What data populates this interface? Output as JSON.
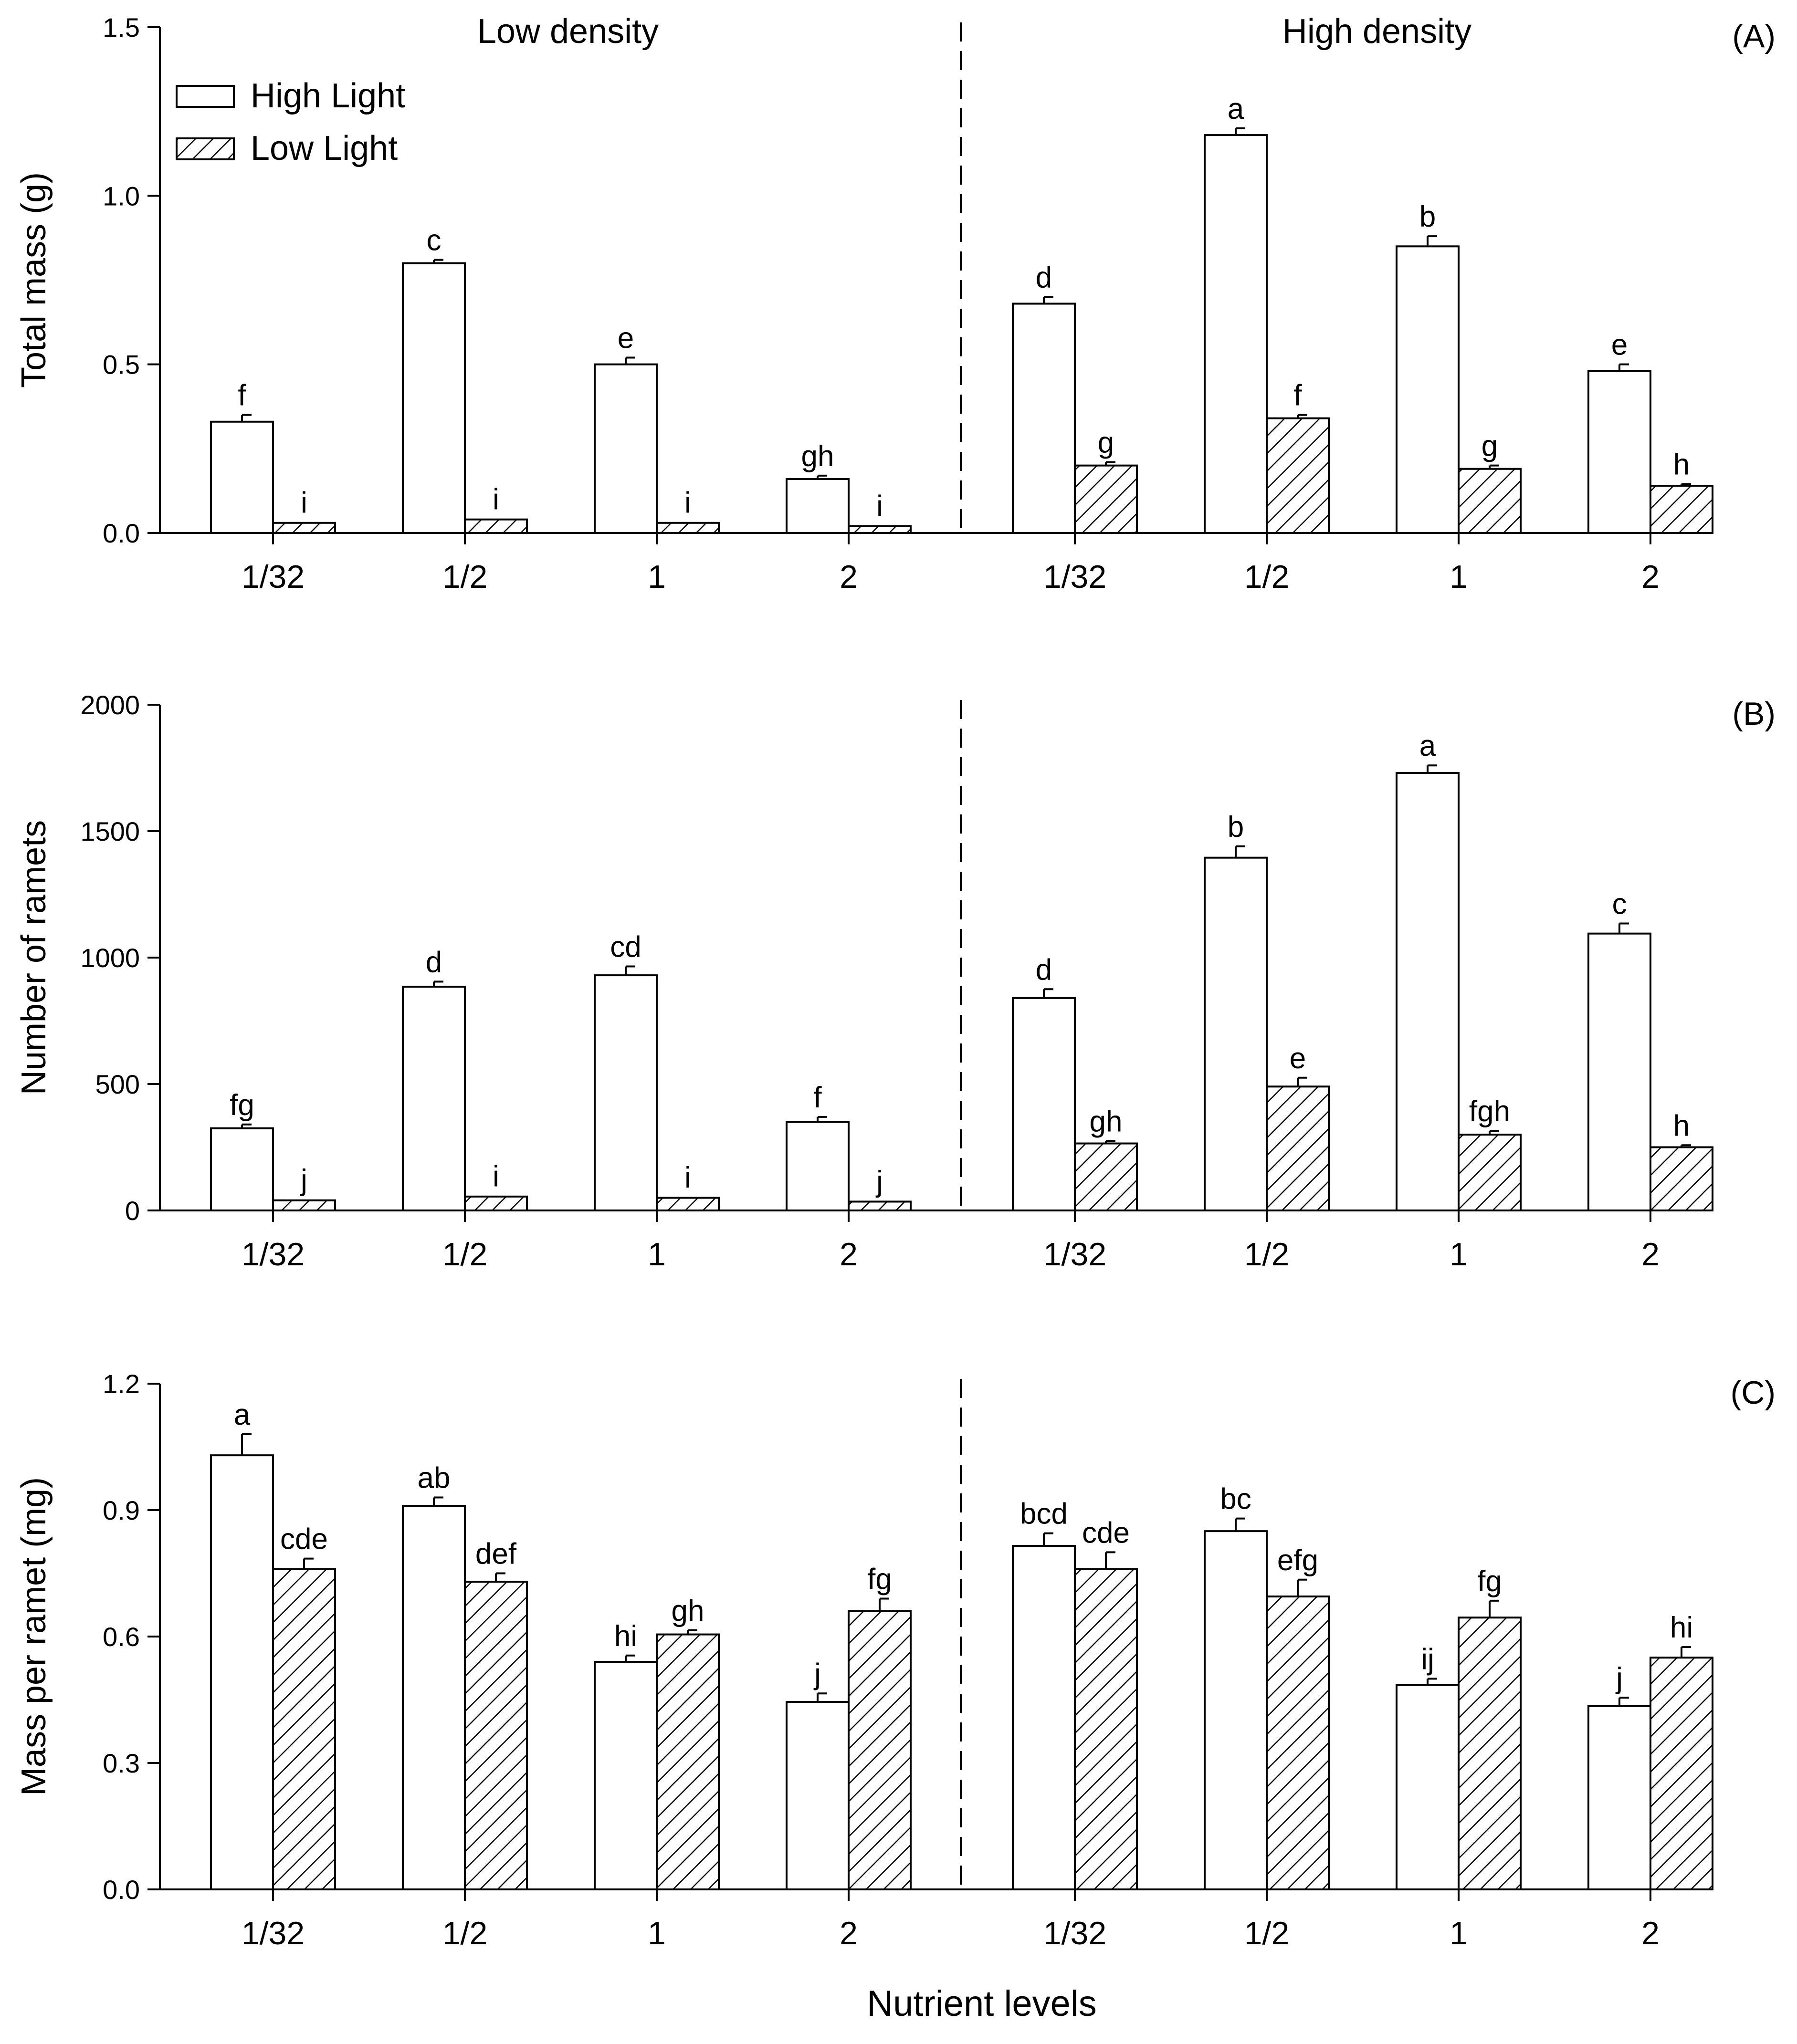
{
  "chart_data": {
    "type": "bar",
    "xlabel": "Nutrient levels",
    "legend": [
      "High Light",
      "Low Light"
    ],
    "legend_position": "top-left",
    "density_groups": [
      "Low density",
      "High density"
    ],
    "categories": [
      "1/32",
      "1/2",
      "1",
      "2"
    ],
    "panels": [
      {
        "label": "(A)",
        "ylabel": "Total mass (g)",
        "ylim": [
          0,
          1.5
        ],
        "yticks": [
          "0.0",
          "0.5",
          "1.0",
          "1.5"
        ],
        "series": [
          {
            "name": "High Light",
            "density": "Low density",
            "values": [
              0.33,
              0.8,
              0.5,
              0.16
            ],
            "errors": [
              0.02,
              0.01,
              0.02,
              0.01
            ],
            "letters": [
              "f",
              "c",
              "e",
              "gh"
            ]
          },
          {
            "name": "Low Light",
            "density": "Low density",
            "values": [
              0.03,
              0.04,
              0.03,
              0.02
            ],
            "errors": [
              0.002,
              0.002,
              0.002,
              0.002
            ],
            "letters": [
              "i",
              "i",
              "i",
              "i"
            ]
          },
          {
            "name": "High Light",
            "density": "High density",
            "values": [
              0.68,
              1.18,
              0.85,
              0.48
            ],
            "errors": [
              0.02,
              0.02,
              0.03,
              0.02
            ],
            "letters": [
              "d",
              "a",
              "b",
              "e"
            ]
          },
          {
            "name": "Low Light",
            "density": "High density",
            "values": [
              0.2,
              0.34,
              0.19,
              0.14
            ],
            "errors": [
              0.01,
              0.01,
              0.01,
              0.005
            ],
            "letters": [
              "g",
              "f",
              "g",
              "h"
            ]
          }
        ]
      },
      {
        "label": "(B)",
        "ylabel": "Number of ramets",
        "ylim": [
          0,
          2000
        ],
        "yticks": [
          "0",
          "500",
          "1000",
          "1500",
          "2000"
        ],
        "series": [
          {
            "name": "High Light",
            "density": "Low density",
            "values": [
              325,
              885,
              930,
              350
            ],
            "errors": [
              15,
              20,
              35,
              20
            ],
            "letters": [
              "fg",
              "d",
              "cd",
              "f"
            ]
          },
          {
            "name": "Low Light",
            "density": "Low density",
            "values": [
              40,
              55,
              50,
              35
            ],
            "errors": [
              3,
              3,
              3,
              3
            ],
            "letters": [
              "j",
              "i",
              "i",
              "j"
            ]
          },
          {
            "name": "High Light",
            "density": "High density",
            "values": [
              840,
              1395,
              1730,
              1095
            ],
            "errors": [
              35,
              45,
              30,
              40
            ],
            "letters": [
              "d",
              "b",
              "a",
              "c"
            ]
          },
          {
            "name": "Low Light",
            "density": "High density",
            "values": [
              265,
              490,
              300,
              250
            ],
            "errors": [
              10,
              35,
              15,
              8
            ],
            "letters": [
              "gh",
              "e",
              "fgh",
              "h"
            ]
          }
        ]
      },
      {
        "label": "(C)",
        "ylabel": "Mass per ramet (mg)",
        "ylim": [
          0,
          1.2
        ],
        "yticks": [
          "0.0",
          "0.3",
          "0.6",
          "0.9",
          "1.2"
        ],
        "series": [
          {
            "name": "High Light",
            "density": "Low density",
            "values": [
              1.03,
              0.91,
              0.54,
              0.445
            ],
            "errors": [
              0.05,
              0.02,
              0.015,
              0.02
            ],
            "letters": [
              "a",
              "ab",
              "hi",
              "j"
            ]
          },
          {
            "name": "Low Light",
            "density": "Low density",
            "values": [
              0.76,
              0.73,
              0.605,
              0.66
            ],
            "errors": [
              0.025,
              0.02,
              0.01,
              0.03
            ],
            "letters": [
              "cde",
              "def",
              "gh",
              "fg"
            ]
          },
          {
            "name": "High Light",
            "density": "High density",
            "values": [
              0.815,
              0.85,
              0.485,
              0.435
            ],
            "errors": [
              0.03,
              0.03,
              0.015,
              0.02
            ],
            "letters": [
              "bcd",
              "bc",
              "ij",
              "j"
            ]
          },
          {
            "name": "Low Light",
            "density": "High density",
            "values": [
              0.76,
              0.695,
              0.645,
              0.55
            ],
            "errors": [
              0.04,
              0.04,
              0.04,
              0.025
            ],
            "letters": [
              "cde",
              "efg",
              "fg",
              "hi"
            ]
          }
        ]
      }
    ]
  }
}
